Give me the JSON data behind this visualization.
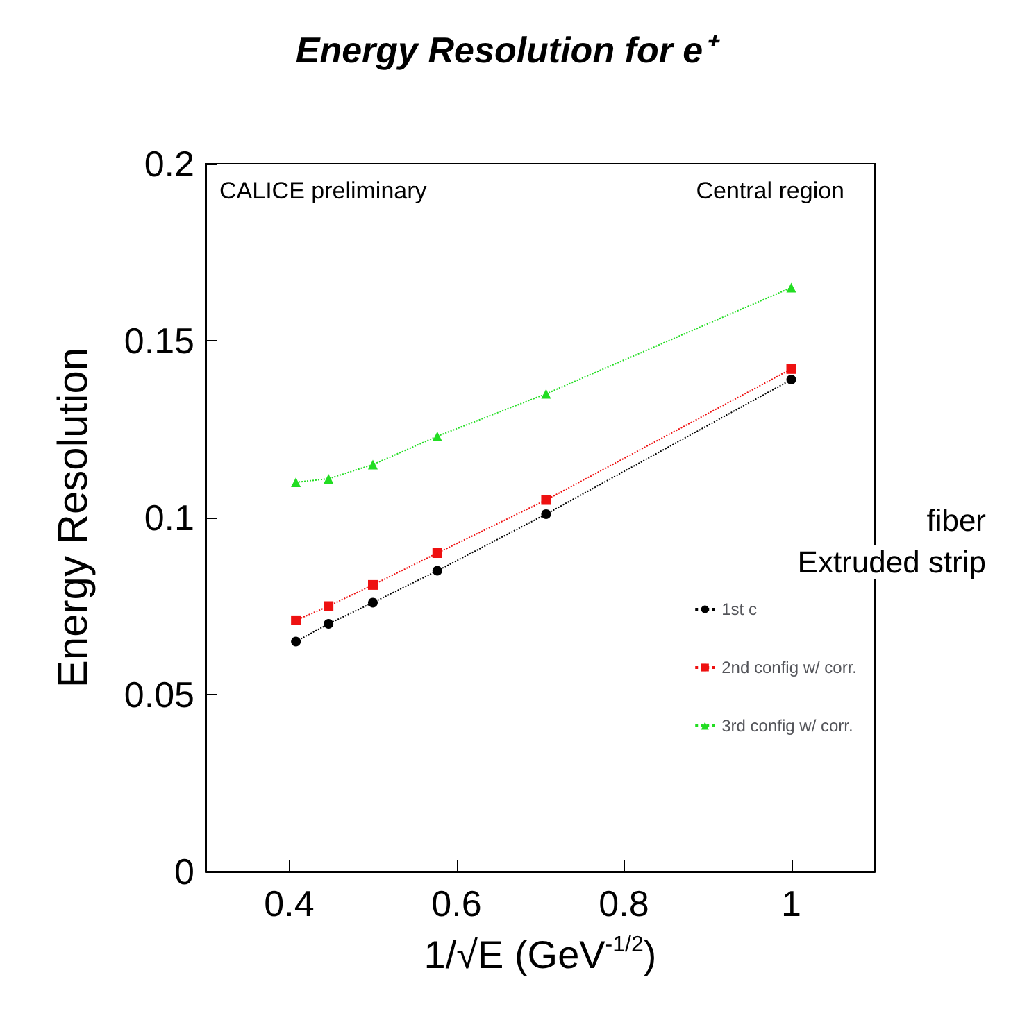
{
  "chart_data": {
    "type": "line",
    "title": "Energy Resolution for e⁺",
    "xlabel": "1/√E (GeV$^{-1/2}$)",
    "ylabel": "Energy Resolution",
    "xlim": [
      0.3,
      1.1
    ],
    "xticks": [
      0.4,
      0.6,
      0.8,
      1
    ],
    "ylim": [
      0,
      0.2
    ],
    "yticks": [
      0,
      0.05,
      0.1,
      0.15,
      0.2
    ],
    "grid": false,
    "legend": "right",
    "line_style": "dotted",
    "x": [
      0.408,
      0.447,
      0.5,
      0.577,
      0.707,
      1.0
    ],
    "series": [
      {
        "name": "1st c",
        "color": "#000000",
        "marker": "circle",
        "values": [
          0.065,
          0.07,
          0.076,
          0.085,
          0.101,
          0.139
        ]
      },
      {
        "name": "2nd config w/ corr.",
        "color": "#ee1111",
        "marker": "square",
        "values": [
          0.071,
          0.075,
          0.081,
          0.09,
          0.105,
          0.142
        ]
      },
      {
        "name": "3rd config w/ corr.",
        "color": "#22dd22",
        "marker": "triangle",
        "values": [
          0.11,
          0.111,
          0.115,
          0.123,
          0.135,
          0.165
        ]
      }
    ],
    "annotations": [
      "CALICE preliminary",
      "Central region",
      "fiber",
      "Extruded strip"
    ]
  }
}
